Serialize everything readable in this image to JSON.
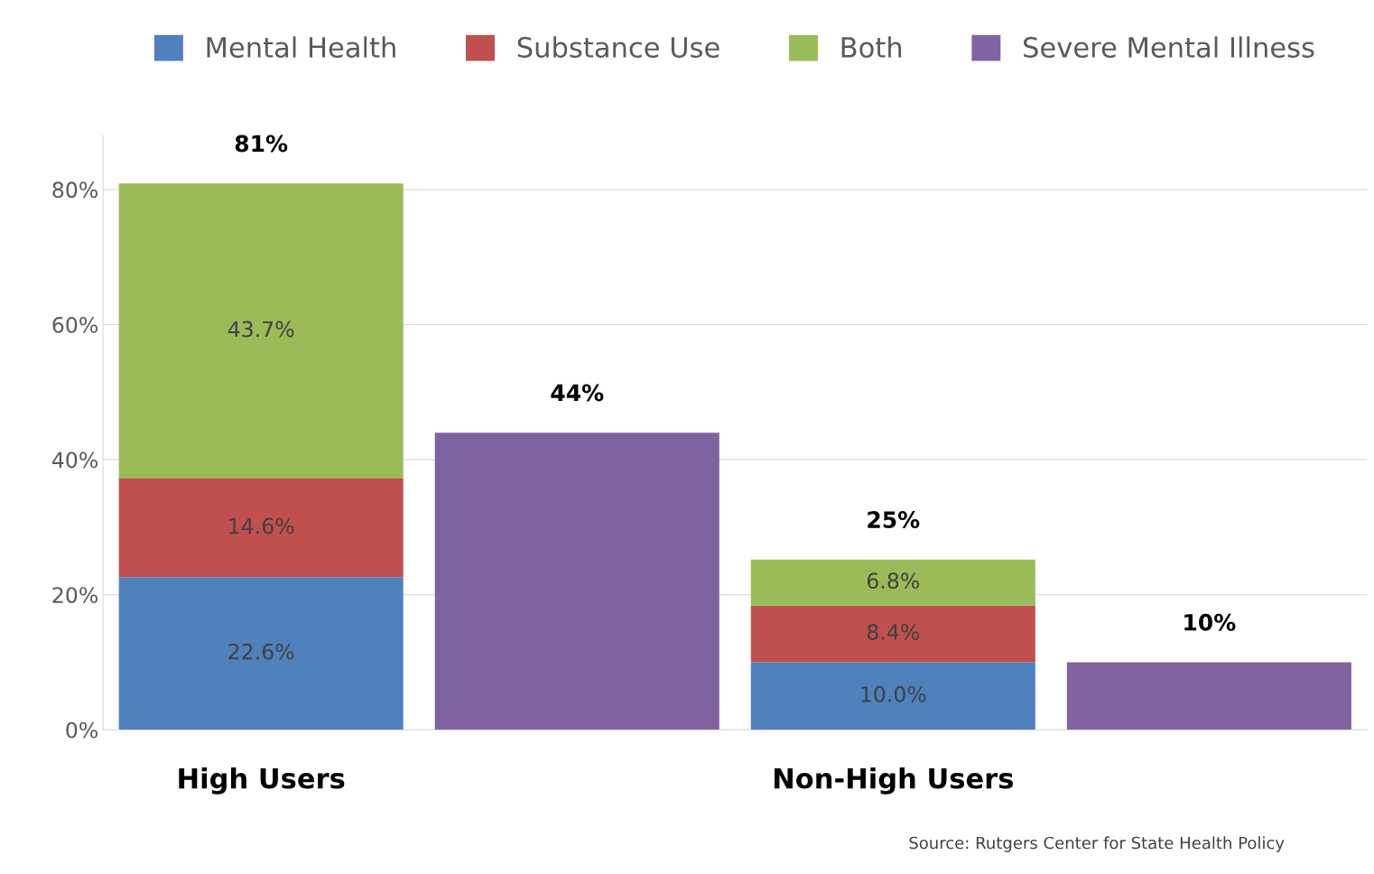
{
  "chart_data": {
    "type": "bar",
    "stacked": true,
    "categories": [
      "High Users",
      null,
      "Non-High Users",
      null
    ],
    "series": [
      {
        "name": "Mental Health",
        "color": "#4f81bd",
        "values": [
          22.6,
          null,
          10.0,
          null
        ],
        "value_labels": [
          "22.6%",
          null,
          "10.0%",
          null
        ]
      },
      {
        "name": "Substance Use",
        "color": "#c0504d",
        "values": [
          14.6,
          null,
          8.4,
          null
        ],
        "value_labels": [
          "14.6%",
          null,
          "8.4%",
          null
        ]
      },
      {
        "name": "Both",
        "color": "#9bbb59",
        "values": [
          43.7,
          null,
          6.8,
          null
        ],
        "value_labels": [
          "43.7%",
          null,
          "6.8%",
          null
        ]
      },
      {
        "name": "Severe Mental Illness",
        "color": "#8064a2",
        "values": [
          null,
          44,
          null,
          10
        ],
        "value_labels": [
          null,
          "44%",
          null,
          "10%"
        ]
      }
    ],
    "totals": [
      "81%",
      null,
      "25%",
      null
    ],
    "ylim": [
      0,
      88
    ],
    "yticks": [
      {
        "value": 0,
        "label": "0%"
      },
      {
        "value": 20,
        "label": "20%"
      },
      {
        "value": 40,
        "label": "40%"
      },
      {
        "value": 60,
        "label": "60%"
      },
      {
        "value": 80,
        "label": "80%"
      }
    ],
    "grid": "y",
    "legend": "top",
    "annotations": [
      "Source: Rutgers Center for State Health Policy"
    ]
  }
}
